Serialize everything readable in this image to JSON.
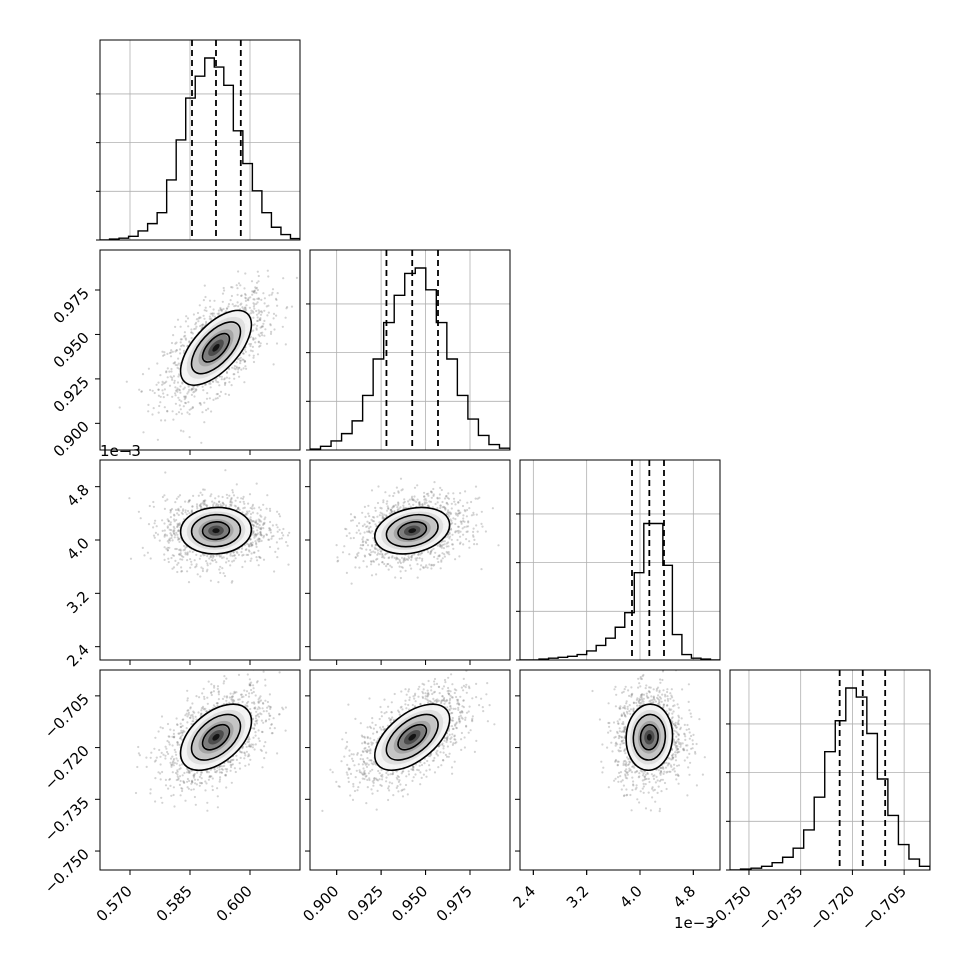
{
  "chart_data": {
    "type": "corner",
    "grid": true,
    "parameters": [
      {
        "range": [
          0.5625,
          0.6125
        ],
        "ticks": [
          "0.570",
          "0.585",
          "0.600"
        ],
        "tick_values": [
          0.57,
          0.585,
          0.6
        ],
        "offset_text": "",
        "quantiles": [
          0.5855,
          0.5915,
          0.5977
        ],
        "hist_peak": 0.5925,
        "hist_counts": [
          0,
          0.005,
          0.01,
          0.02,
          0.05,
          0.09,
          0.15,
          0.33,
          0.55,
          0.78,
          0.9,
          1.0,
          0.95,
          0.85,
          0.6,
          0.42,
          0.27,
          0.15,
          0.07,
          0.03,
          0.008
        ],
        "contour_levels": 3
      },
      {
        "range": [
          0.885,
          0.9975
        ],
        "ticks": [
          "0.900",
          "0.925",
          "0.950",
          "0.975"
        ],
        "tick_values": [
          0.9,
          0.925,
          0.95,
          0.975
        ],
        "offset_text": "",
        "quantiles": [
          0.928,
          0.9425,
          0.957
        ],
        "hist_peak": 0.945,
        "hist_counts": [
          0.005,
          0.02,
          0.05,
          0.09,
          0.16,
          0.3,
          0.5,
          0.7,
          0.85,
          0.97,
          1.0,
          0.88,
          0.7,
          0.5,
          0.3,
          0.17,
          0.08,
          0.03,
          0.01
        ],
        "contour_levels": 3
      },
      {
        "range": [
          2.2,
          5.2
        ],
        "ticks": [
          "2.4",
          "3.2",
          "4.0",
          "4.8"
        ],
        "tick_values": [
          2.4,
          3.2,
          4.0,
          4.8
        ],
        "offset_text": "1e−3",
        "quantiles": [
          3.88,
          4.14,
          4.36
        ],
        "hist_peak": 4.2,
        "hist_counts": [
          0,
          0,
          0.005,
          0.01,
          0.015,
          0.02,
          0.03,
          0.05,
          0.08,
          0.12,
          0.18,
          0.26,
          0.48,
          0.75,
          0.75,
          0.52,
          0.14,
          0.03,
          0.01,
          0.005,
          0
        ],
        "contour_levels": 3
      },
      {
        "range": [
          -0.7555,
          -0.6975
        ],
        "ticks": [
          "−0.750",
          "−0.735",
          "−0.720",
          "−0.705"
        ],
        "tick_values": [
          -0.75,
          -0.735,
          -0.72,
          -0.705
        ],
        "offset_text": "",
        "quantiles": [
          -0.7237,
          -0.717,
          -0.7105
        ],
        "hist_peak": -0.717,
        "hist_counts": [
          0,
          0.005,
          0.01,
          0.02,
          0.04,
          0.07,
          0.12,
          0.22,
          0.4,
          0.65,
          0.82,
          1.0,
          0.95,
          0.75,
          0.5,
          0.3,
          0.14,
          0.06,
          0.02
        ],
        "contour_levels": 3
      }
    ],
    "correlations": [
      [
        1,
        0.62,
        0.05,
        0.48
      ],
      [
        0.62,
        1,
        0.25,
        0.55
      ],
      [
        0.05,
        0.25,
        1,
        0.05
      ],
      [
        0.48,
        0.55,
        0.05,
        1
      ]
    ]
  }
}
